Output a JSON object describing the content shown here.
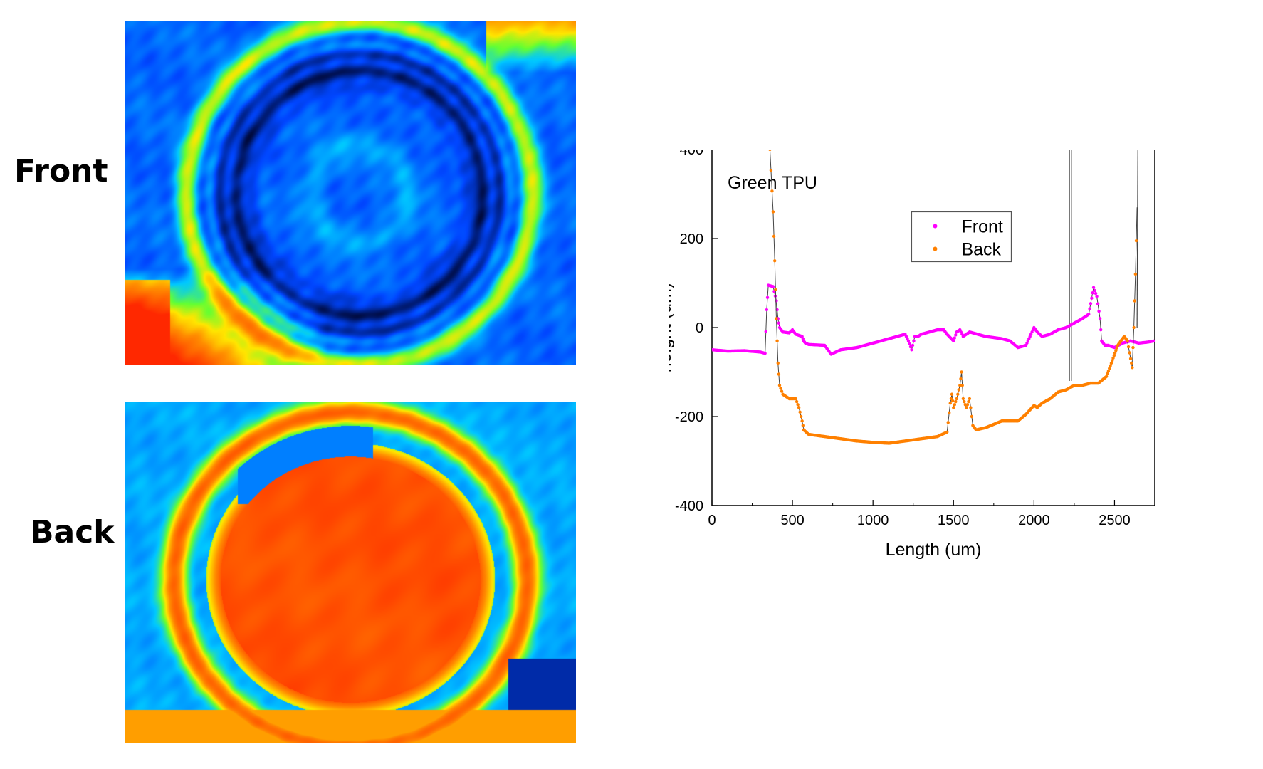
{
  "panels": {
    "front_label": "Front",
    "back_label": "Back"
  },
  "colors": {
    "front": "#ff00ff",
    "back": "#ff8000",
    "connector": "#444444",
    "heat_dark": "#000a3c",
    "heat_blue": "#0046ff",
    "heat_cyan": "#00c8ff",
    "heat_green": "#64ff32",
    "heat_yellow": "#ffe600",
    "heat_orange": "#ff8c00",
    "heat_red": "#ff2800"
  },
  "chart_data": {
    "type": "line",
    "annotation": "Green TPU",
    "xlabel": "Length (um)",
    "ylabel": "height (um)",
    "xlim": [
      0,
      2750
    ],
    "ylim": [
      -400,
      400
    ],
    "xticks": [
      0,
      500,
      1000,
      1500,
      2000,
      2500
    ],
    "yticks": [
      -400,
      -200,
      0,
      200,
      400
    ],
    "grid": false,
    "legend_position": "upper-center",
    "series": [
      {
        "name": "Front",
        "color": "#ff00ff",
        "x": [
          0,
          100,
          200,
          300,
          330,
          340,
          350,
          380,
          400,
          410,
          420,
          440,
          480,
          500,
          520,
          560,
          570,
          580,
          600,
          700,
          720,
          740,
          800,
          900,
          1000,
          1100,
          1200,
          1220,
          1240,
          1260,
          1280,
          1300,
          1400,
          1440,
          1460,
          1500,
          1520,
          1540,
          1560,
          1600,
          1700,
          1800,
          1850,
          1900,
          1950,
          2000,
          2020,
          2050,
          2100,
          2150,
          2200,
          2250,
          2300,
          2340,
          2370,
          2390,
          2410,
          2420,
          2440,
          2460,
          2500,
          2550,
          2600,
          2650,
          2700,
          2750
        ],
        "y": [
          -50,
          -53,
          -52,
          -55,
          -58,
          40,
          95,
          92,
          60,
          20,
          0,
          -10,
          -12,
          -5,
          -15,
          -20,
          -30,
          -35,
          -38,
          -40,
          -50,
          -60,
          -50,
          -45,
          -35,
          -25,
          -15,
          -30,
          -50,
          -20,
          -20,
          -15,
          -5,
          -5,
          -15,
          -30,
          -10,
          -5,
          -20,
          -10,
          -20,
          -25,
          -30,
          -45,
          -40,
          0,
          -10,
          -20,
          -15,
          -5,
          0,
          10,
          20,
          30,
          90,
          70,
          20,
          -30,
          -40,
          -40,
          -45,
          -35,
          -30,
          -35,
          -33,
          -30
        ]
      },
      {
        "name": "Back",
        "color": "#ff8000",
        "x": [
          360,
          380,
          390,
          400,
          410,
          420,
          440,
          480,
          520,
          540,
          560,
          570,
          600,
          700,
          800,
          900,
          1000,
          1100,
          1200,
          1300,
          1400,
          1460,
          1480,
          1490,
          1500,
          1520,
          1540,
          1550,
          1560,
          1580,
          1600,
          1620,
          1640,
          1700,
          1800,
          1900,
          1950,
          2000,
          2020,
          2050,
          2100,
          2150,
          2200,
          2250,
          2300,
          2350,
          2400,
          2450,
          2480,
          2520,
          2560,
          2580,
          2600,
          2610,
          2620,
          2630,
          2640
        ],
        "y": [
          400,
          260,
          150,
          20,
          -80,
          -130,
          -150,
          -160,
          -160,
          -180,
          -210,
          -230,
          -240,
          -245,
          -250,
          -255,
          -258,
          -260,
          -255,
          -250,
          -245,
          -235,
          -170,
          -150,
          -180,
          -160,
          -130,
          -100,
          -160,
          -180,
          -160,
          -220,
          -230,
          -225,
          -210,
          -210,
          -195,
          -175,
          -180,
          -170,
          -160,
          -145,
          -140,
          -130,
          -130,
          -125,
          -125,
          -110,
          -80,
          -40,
          -20,
          -30,
          -70,
          -90,
          0,
          120,
          270
        ]
      }
    ]
  }
}
